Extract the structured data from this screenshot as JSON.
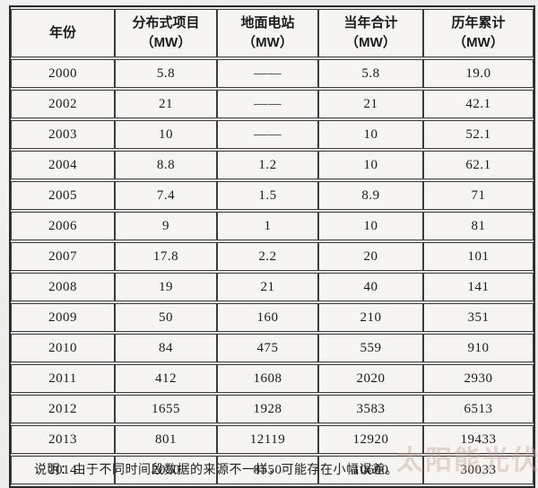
{
  "table": {
    "columns": [
      {
        "label": "年份",
        "unit": ""
      },
      {
        "label": "分布式项目",
        "unit": "（MW）"
      },
      {
        "label": "地面电站",
        "unit": "（MW）"
      },
      {
        "label": "当年合计",
        "unit": "（MW）"
      },
      {
        "label": "历年累计",
        "unit": "（MW）"
      }
    ],
    "rows": [
      [
        "2000",
        "5.8",
        "——",
        "5.8",
        "19.0"
      ],
      [
        "2002",
        "21",
        "——",
        "21",
        "42.1"
      ],
      [
        "2003",
        "10",
        "——",
        "10",
        "52.1"
      ],
      [
        "2004",
        "8.8",
        "1.2",
        "10",
        "62.1"
      ],
      [
        "2005",
        "7.4",
        "1.5",
        "8.9",
        "71"
      ],
      [
        "2006",
        "9",
        "1",
        "10",
        "81"
      ],
      [
        "2007",
        "17.8",
        "2.2",
        "20",
        "101"
      ],
      [
        "2008",
        "19",
        "21",
        "40",
        "141"
      ],
      [
        "2009",
        "50",
        "160",
        "210",
        "351"
      ],
      [
        "2010",
        "84",
        "475",
        "559",
        "910"
      ],
      [
        "2011",
        "412",
        "1608",
        "2020",
        "2930"
      ],
      [
        "2012",
        "1655",
        "1928",
        "3583",
        "6513"
      ],
      [
        "2013",
        "801",
        "12119",
        "12920",
        "19433"
      ],
      [
        "2014",
        "2050",
        "8550",
        "10600",
        "30033"
      ]
    ]
  },
  "note": "说明：由于不同时间段数据的来源不一样，可能存在小幅误差。",
  "watermark": "太阳能光伏网",
  "colors": {
    "page_background": "#edecea",
    "cell_background": "#f6f5f2",
    "border": "#2b2b2b",
    "text": "#1b1b1b",
    "watermark": "rgba(196,168,154,0.42)"
  }
}
